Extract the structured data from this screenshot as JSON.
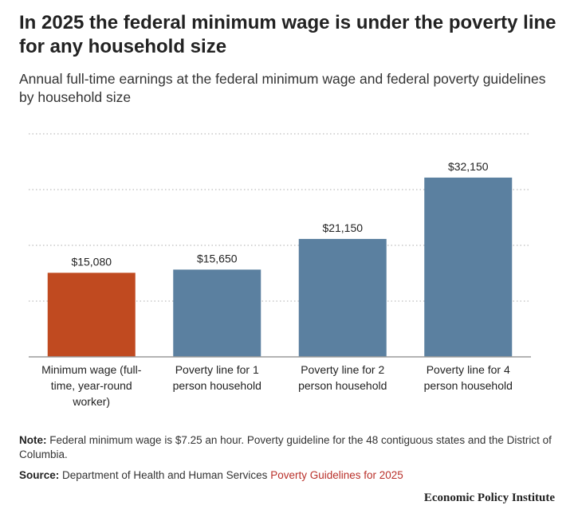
{
  "header": {
    "title": "In 2025 the federal minimum wage is under the poverty line for any household size",
    "subtitle": "Annual full-time earnings at the federal minimum wage and federal poverty guidelines by household size"
  },
  "colors": {
    "highlight": "#c04a20",
    "bar": "#5b80a0",
    "link": "#b9302a",
    "grid": "#d6d6d6"
  },
  "chart_data": {
    "type": "bar",
    "categories": [
      [
        "Minimum wage (full-",
        "time, year-round",
        "worker)"
      ],
      [
        "Poverty line for 1",
        "person household"
      ],
      [
        "Poverty line for 2",
        "person household"
      ],
      [
        "Poverty line for 4",
        "person household"
      ]
    ],
    "values": [
      15080,
      15650,
      21150,
      32150
    ],
    "value_labels": [
      "$15,080",
      "$15,650",
      "$21,150",
      "$32,150"
    ],
    "highlight_index": 0,
    "ylim": [
      0,
      40000
    ],
    "gridlines": [
      10000,
      20000,
      30000,
      40000
    ],
    "grid": true,
    "y_tick_labels_shown": false
  },
  "footer": {
    "note_label": "Note:",
    "note_text": "Federal minimum wage is $7.25 an hour. Poverty guideline for the 48 contiguous states and the District of Columbia.",
    "source_label": "Source:",
    "source_text": "Department of Health and Human Services",
    "source_link": "Poverty Guidelines for 2025",
    "brand": "Economic Policy Institute"
  }
}
